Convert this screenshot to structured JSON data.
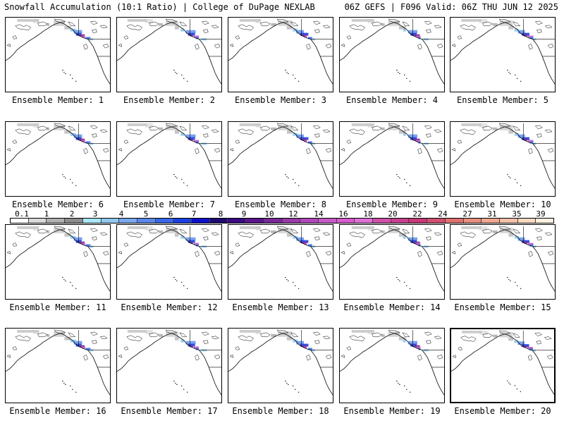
{
  "header": {
    "title_left": "Snowfall Accumulation (10:1 Ratio) | College of DuPage NEXLAB",
    "title_right": "06Z GEFS | F096 Valid: 06Z THU JUN 12 2025"
  },
  "members": [
    {
      "label": "Ensemble Member: 1"
    },
    {
      "label": "Ensemble Member: 2"
    },
    {
      "label": "Ensemble Member: 3"
    },
    {
      "label": "Ensemble Member: 4"
    },
    {
      "label": "Ensemble Member: 5"
    },
    {
      "label": "Ensemble Member: 6"
    },
    {
      "label": "Ensemble Member: 7"
    },
    {
      "label": "Ensemble Member: 8"
    },
    {
      "label": "Ensemble Member: 9"
    },
    {
      "label": "Ensemble Member: 10"
    },
    {
      "label": "Ensemble Member: 11"
    },
    {
      "label": "Ensemble Member: 12"
    },
    {
      "label": "Ensemble Member: 13"
    },
    {
      "label": "Ensemble Member: 14"
    },
    {
      "label": "Ensemble Member: 15"
    },
    {
      "label": "Ensemble Member: 16"
    },
    {
      "label": "Ensemble Member: 17"
    },
    {
      "label": "Ensemble Member: 18"
    },
    {
      "label": "Ensemble Member: 19"
    },
    {
      "label": "Ensemble Member: 20",
      "selected": true
    }
  ],
  "legend": {
    "ticks": [
      "0.1",
      "1",
      "2",
      "3",
      "4",
      "5",
      "6",
      "7",
      "8",
      "9",
      "10",
      "12",
      "14",
      "16",
      "18",
      "20",
      "22",
      "24",
      "27",
      "31",
      "35",
      "39"
    ],
    "colors": [
      "#ffffff",
      "#d9d9d9",
      "#b0b0b0",
      "#8c8c8c",
      "#a8e8f8",
      "#90c8f0",
      "#78a8ee",
      "#5a88ea",
      "#3868e8",
      "#1c40e0",
      "#1010c8",
      "#200a70",
      "#3a0a80",
      "#5a148c",
      "#7a2898",
      "#9a3aa8",
      "#b048b8",
      "#c85ac8",
      "#d85ad0",
      "#e070d8",
      "#d050a8",
      "#c84090",
      "#c83878",
      "#d05070",
      "#e07070",
      "#e89080",
      "#f0a890",
      "#f4c0a8",
      "#f8d8c0",
      "#fff0e0"
    ]
  }
}
